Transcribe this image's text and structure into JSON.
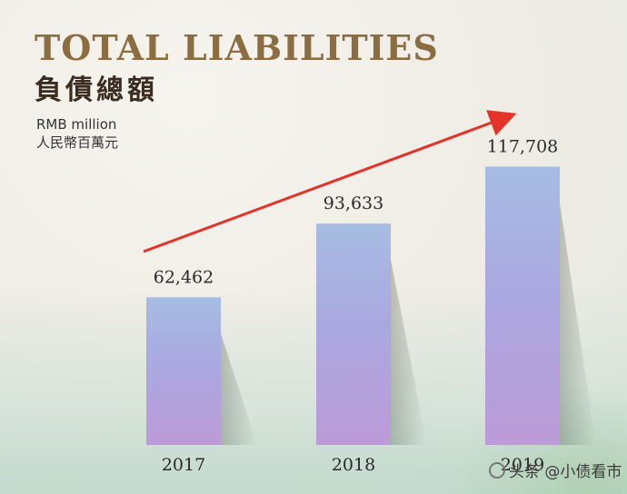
{
  "header": {
    "title": "TOTAL LIABILITIES",
    "title_cn": "負債總額",
    "unit_en": "RMB million",
    "unit_cn": "人民幣百萬元"
  },
  "watermark": {
    "text": "头条 @小债看市"
  },
  "colors": {
    "title": "#8c6d42",
    "bar_top": "#9fb8e0",
    "bar_bottom": "#b89ad8",
    "arrow": "#e5332a"
  },
  "chart_data": {
    "type": "bar",
    "title": "TOTAL LIABILITIES",
    "ylabel": "RMB million",
    "categories": [
      "2017",
      "2018",
      "2019"
    ],
    "series": [
      {
        "values": [
          62462,
          93633,
          117708
        ]
      }
    ],
    "value_labels": [
      "62,462",
      "93,633",
      "117,708"
    ],
    "ylim": [
      0,
      125000
    ],
    "grid": false,
    "trend_arrow": true
  }
}
